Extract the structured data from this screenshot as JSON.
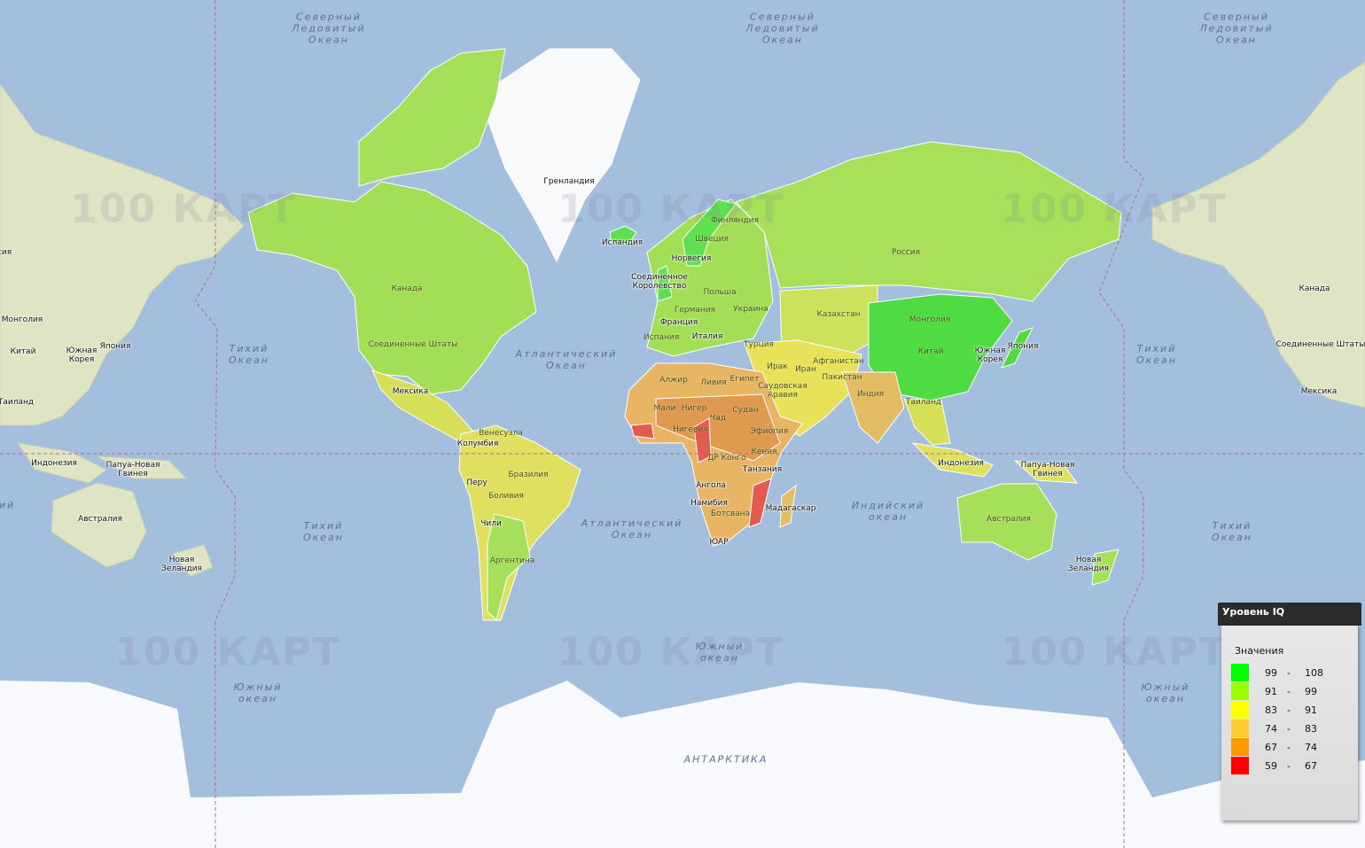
{
  "map": {
    "watermark": "100 КАРТ",
    "colors": {
      "ocean": "#a4bede",
      "land_natural": "#dfe4c4",
      "ice": "#f7f9fc",
      "grid_line": "#b07080"
    },
    "oceans": [
      "Северный\nЛедовитый\nОкеан",
      "Северный\nЛедовитый\nОкеан",
      "Северный\nЛедовитый\nОкеан",
      "Тихий\nОкеан",
      "Тихий\nОкеан",
      "Тихий\nОкеан",
      "Тихий\nОкеан",
      "Атлантический\nОкеан",
      "Атлантический\nОкеан",
      "Индийский\nокеан",
      "Южный\nокеан",
      "Южный\nокеан",
      "Южный\nокеан",
      "АНТАРКТИКА",
      "ий"
    ],
    "countries": [
      "Гренландия",
      "Исландия",
      "Финляндия",
      "Швеция",
      "Норвегия",
      "Соединенное\nКоролевство",
      "Польша",
      "Германия",
      "Украина",
      "Франция",
      "Испания",
      "Италия",
      "Турция",
      "Казахстан",
      "Россия",
      "Монголия",
      "Китай",
      "Южная\nКорея",
      "Япония",
      "Афганистан",
      "Пакистан",
      "Ирак",
      "Иран",
      "Саудовская\nАравия",
      "Индия",
      "Таиланд",
      "Египет",
      "Ливия",
      "Алжир",
      "Мали",
      "Нигер",
      "Чад",
      "Судан",
      "Нигерия",
      "Эфиопия",
      "ДР Конго",
      "Кения",
      "Танзания",
      "Ангола",
      "Намибия",
      "Ботсвана",
      "Мадагаскар",
      "ЮАР",
      "Индонезия",
      "Папуа-Новая\nГвинея",
      "Австралия",
      "Новая\nЗеландия",
      "Канада",
      "Соединенные Штаты",
      "Мексика",
      "Венесуэла",
      "Колумбия",
      "Бразилия",
      "Перу",
      "Боливия",
      "Чили",
      "Аргентина",
      "Монголия",
      "Китай",
      "Южная\nКорея",
      "Япония",
      "Таиланд",
      "Индонезия",
      "Папуа-Новая\nГвинея",
      "Австралия",
      "Новая\nЗеландия",
      "сия",
      "Канада",
      "Соединенные Штаты",
      "Мексика"
    ]
  },
  "legend": {
    "title": "Уровень IQ",
    "subtitle": "Значения",
    "items": [
      {
        "from": "99",
        "to": "108",
        "color": "#00ff00"
      },
      {
        "from": "91",
        "to": "99",
        "color": "#99ff00"
      },
      {
        "from": "83",
        "to": "91",
        "color": "#ffff00"
      },
      {
        "from": "74",
        "to": "83",
        "color": "#ffcc33"
      },
      {
        "from": "67",
        "to": "74",
        "color": "#ff9900"
      },
      {
        "from": "59",
        "to": "67",
        "color": "#ff0000"
      }
    ],
    "separator": "-"
  }
}
